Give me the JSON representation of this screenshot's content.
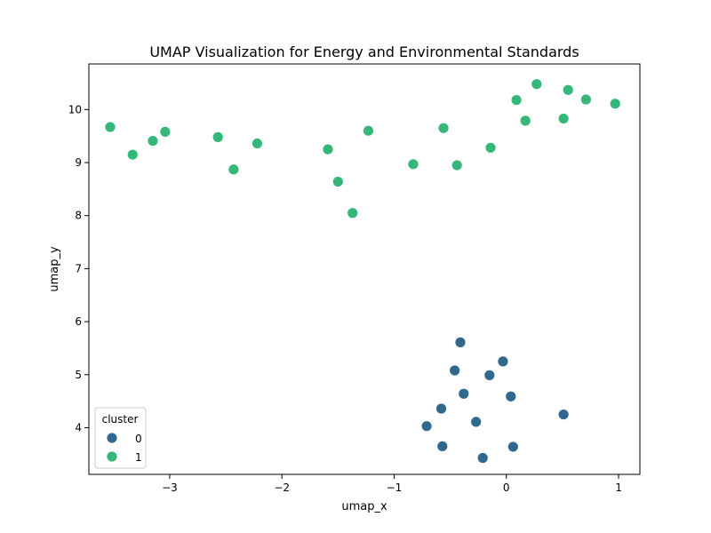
{
  "chart_data": {
    "type": "scatter",
    "title": "UMAP Visualization for Energy and Environmental Standards",
    "xlabel": "umap_x",
    "ylabel": "umap_y",
    "xlim": [
      -3.72,
      1.19
    ],
    "ylim": [
      3.12,
      10.86
    ],
    "xticks": [
      -3,
      -2,
      -1,
      0,
      1
    ],
    "xtick_labels": [
      "−3",
      "−2",
      "−1",
      "0",
      "1"
    ],
    "yticks": [
      4,
      5,
      6,
      7,
      8,
      9,
      10
    ],
    "ytick_labels": [
      "4",
      "5",
      "6",
      "7",
      "8",
      "9",
      "10"
    ],
    "grid": false,
    "legend": {
      "title": "cluster",
      "position": "lower-left"
    },
    "series": [
      {
        "name": "0",
        "color": "#30688e",
        "points": [
          [
            -0.41,
            5.61
          ],
          [
            -0.46,
            5.08
          ],
          [
            -0.03,
            5.25
          ],
          [
            -0.15,
            4.99
          ],
          [
            -0.38,
            4.64
          ],
          [
            0.04,
            4.59
          ],
          [
            -0.58,
            4.36
          ],
          [
            0.51,
            4.25
          ],
          [
            -0.71,
            4.03
          ],
          [
            -0.27,
            4.11
          ],
          [
            -0.57,
            3.65
          ],
          [
            0.06,
            3.64
          ],
          [
            -0.21,
            3.43
          ]
        ]
      },
      {
        "name": "1",
        "color": "#35b779",
        "points": [
          [
            -3.53,
            9.67
          ],
          [
            -3.33,
            9.15
          ],
          [
            -3.15,
            9.41
          ],
          [
            -3.04,
            9.58
          ],
          [
            -2.57,
            9.48
          ],
          [
            -2.43,
            8.87
          ],
          [
            -2.22,
            9.36
          ],
          [
            -1.59,
            9.25
          ],
          [
            -1.5,
            8.64
          ],
          [
            -1.37,
            8.05
          ],
          [
            -1.23,
            9.6
          ],
          [
            -0.83,
            8.97
          ],
          [
            -0.56,
            9.65
          ],
          [
            -0.44,
            8.95
          ],
          [
            -0.14,
            9.28
          ],
          [
            0.09,
            10.18
          ],
          [
            0.17,
            9.79
          ],
          [
            0.27,
            10.48
          ],
          [
            0.51,
            9.83
          ],
          [
            0.55,
            10.37
          ],
          [
            0.71,
            10.19
          ],
          [
            0.97,
            10.11
          ]
        ]
      }
    ]
  }
}
